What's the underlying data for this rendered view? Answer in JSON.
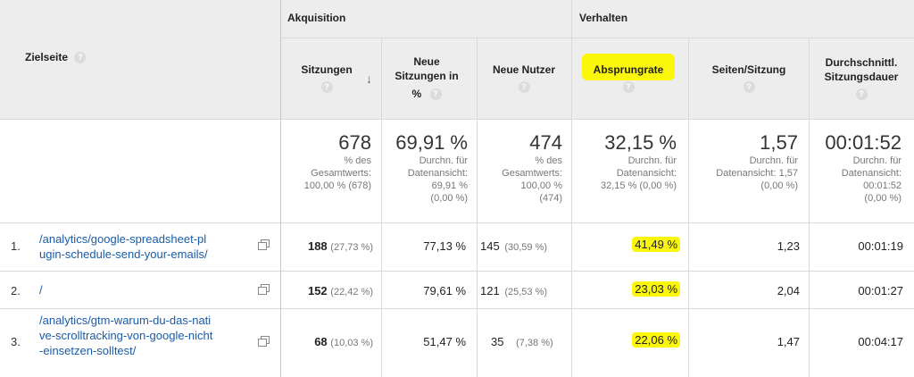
{
  "header": {
    "landing_page_label": "Zielseite",
    "group_acquisition": "Akquisition",
    "group_behavior": "Verhalten",
    "help_glyph": "?",
    "columns": {
      "sessions": "Sitzungen",
      "new_sessions_line1": "Neue",
      "new_sessions_line2": "Sitzungen in",
      "new_sessions_line3": "%",
      "new_users": "Neue Nutzer",
      "bounce_rate": "Absprungrate",
      "pages_per_session": "Seiten/Sitzung",
      "avg_duration_line1": "Durchschnittl.",
      "avg_duration_line2": "Sitzungsdauer"
    },
    "sort_indicator": "↓"
  },
  "summary": {
    "sessions": {
      "value": "678",
      "l1": "% des",
      "l2": "Gesamtwerts:",
      "l3": "100,00 % (678)"
    },
    "new_sessions": {
      "value": "69,91 %",
      "l1": "Durchn. für",
      "l2": "Datenansicht:",
      "l3": "69,91 %",
      "l4": "(0,00 %)"
    },
    "new_users": {
      "value": "474",
      "l1": "% des",
      "l2": "Gesamtwerts:",
      "l3": "100,00 %",
      "l4": "(474)"
    },
    "bounce_rate": {
      "value": "32,15 %",
      "l1": "Durchn. für",
      "l2": "Datenansicht:",
      "l3": "32,15 % (0,00 %)"
    },
    "pages_per_session": {
      "value": "1,57",
      "l1": "Durchn. für",
      "l2": "Datenansicht: 1,57",
      "l3": "(0,00 %)"
    },
    "avg_duration": {
      "value": "00:01:52",
      "l1": "Durchn. für",
      "l2": "Datenansicht:",
      "l3": "00:01:52",
      "l4": "(0,00 %)"
    }
  },
  "rows": [
    {
      "num": "1.",
      "page_line1": "/analytics/google-spreadsheet-pl",
      "page_line2": "ugin-schedule-send-your-emails/",
      "page_line3": "",
      "sessions": "188",
      "sessions_pct": "(27,73 %)",
      "new_sessions": "77,13 %",
      "new_users": "145",
      "new_users_pct": "(30,59 %)",
      "bounce_rate": "41,49 %",
      "pages_per_session": "1,23",
      "avg_duration": "00:01:19"
    },
    {
      "num": "2.",
      "page_line1": "/",
      "page_line2": "",
      "page_line3": "",
      "sessions": "152",
      "sessions_pct": "(22,42 %)",
      "new_sessions": "79,61 %",
      "new_users": "121",
      "new_users_pct": "(25,53 %)",
      "bounce_rate": "23,03 %",
      "pages_per_session": "2,04",
      "avg_duration": "00:01:27"
    },
    {
      "num": "3.",
      "page_line1": "/analytics/gtm-warum-du-das-nati",
      "page_line2": "ve-scrolltracking-von-google-nicht",
      "page_line3": "-einsetzen-solltest/",
      "sessions": "68",
      "sessions_pct": "(10,03 %)",
      "new_sessions": "51,47 %",
      "new_users": "35",
      "new_users_pct": "(7,38 %)",
      "bounce_rate": "22,06 %",
      "pages_per_session": "1,47",
      "avg_duration": "00:04:17"
    }
  ],
  "colors": {
    "highlight": "#fbf70a",
    "link": "#1a5ca8",
    "header_bg": "#ededed"
  }
}
